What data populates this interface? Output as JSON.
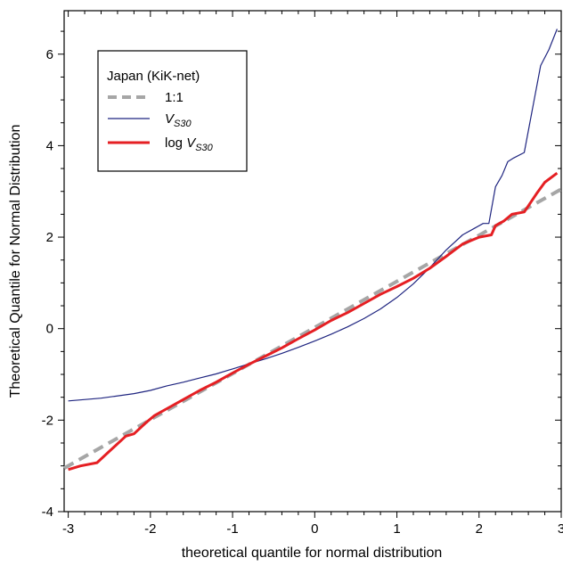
{
  "chart_data": {
    "type": "line",
    "xlabel": "theoretical quantile for normal distribution",
    "ylabel": "Theoretical Quantile for Normal Distribution",
    "xlim": [
      -3.05,
      3.0
    ],
    "ylim": [
      -4.0,
      6.95
    ],
    "xticks": [
      -3,
      -2,
      -1,
      0,
      1,
      2,
      3
    ],
    "yticks": [
      -4,
      -2,
      0,
      2,
      4,
      6
    ],
    "xtick_labels": [
      "-3",
      "-2",
      "-1",
      "0",
      "1",
      "2",
      "3"
    ],
    "ytick_labels": [
      "-4",
      "-2",
      "0",
      "2",
      "4",
      "6"
    ],
    "grid": false,
    "legend": {
      "title": "Japan (KiK-net)",
      "placement": "top-left",
      "entries": [
        {
          "label": "1:1"
        },
        {
          "label": "V",
          "italic": true,
          "subscript": "S30"
        },
        {
          "label": "log ",
          "label_italic": "V",
          "subscript": "S30"
        }
      ]
    },
    "series": [
      {
        "name": "1:1",
        "color": "#a6a6a6",
        "style": "dashed",
        "x": [
          -3.05,
          3.0
        ],
        "y": [
          -3.05,
          3.05
        ]
      },
      {
        "name": "V_S30",
        "color": "#1f2580",
        "style": "solid",
        "x": [
          -3.0,
          -2.6,
          -2.2,
          -2.0,
          -1.8,
          -1.6,
          -1.4,
          -1.2,
          -1.0,
          -0.8,
          -0.6,
          -0.4,
          -0.2,
          0.0,
          0.2,
          0.4,
          0.6,
          0.8,
          1.0,
          1.2,
          1.4,
          1.6,
          1.8,
          1.95,
          2.05,
          2.12,
          2.2,
          2.28,
          2.35,
          2.42,
          2.55,
          2.65,
          2.75,
          2.85,
          2.95
        ],
        "y": [
          -1.58,
          -1.52,
          -1.42,
          -1.35,
          -1.25,
          -1.17,
          -1.08,
          -0.99,
          -0.88,
          -0.77,
          -0.66,
          -0.54,
          -0.41,
          -0.27,
          -0.12,
          0.04,
          0.22,
          0.43,
          0.68,
          0.98,
          1.33,
          1.72,
          2.05,
          2.2,
          2.3,
          2.3,
          3.1,
          3.35,
          3.65,
          3.73,
          3.85,
          4.8,
          5.75,
          6.1,
          6.55
        ]
      },
      {
        "name": "log V_S30",
        "color": "#e51f23",
        "style": "solid",
        "x": [
          -3.0,
          -2.85,
          -2.65,
          -2.45,
          -2.3,
          -2.2,
          -2.05,
          -1.95,
          -1.8,
          -1.6,
          -1.4,
          -1.2,
          -1.0,
          -0.8,
          -0.6,
          -0.4,
          -0.2,
          0.0,
          0.2,
          0.4,
          0.6,
          0.8,
          1.0,
          1.2,
          1.4,
          1.6,
          1.8,
          2.0,
          2.15,
          2.2,
          2.3,
          2.4,
          2.55,
          2.7,
          2.8,
          2.95
        ],
        "y": [
          -3.08,
          -3.0,
          -2.93,
          -2.6,
          -2.35,
          -2.3,
          -2.05,
          -1.9,
          -1.75,
          -1.55,
          -1.35,
          -1.17,
          -0.97,
          -0.78,
          -0.6,
          -0.42,
          -0.22,
          -0.03,
          0.18,
          0.35,
          0.55,
          0.75,
          0.92,
          1.1,
          1.32,
          1.58,
          1.85,
          2.0,
          2.05,
          2.25,
          2.35,
          2.5,
          2.55,
          2.95,
          3.2,
          3.4
        ]
      }
    ]
  }
}
